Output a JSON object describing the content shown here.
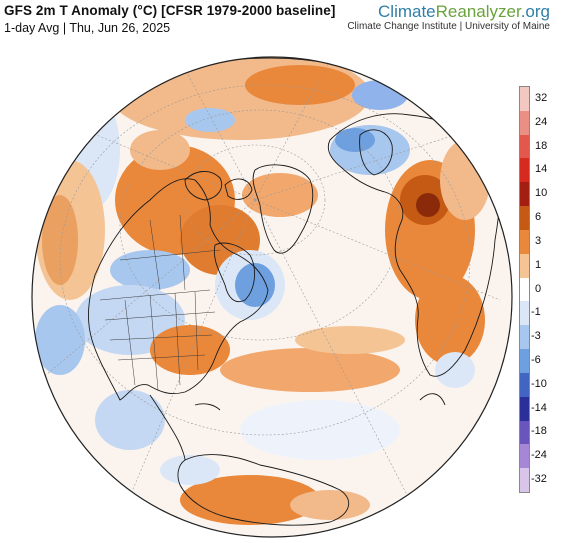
{
  "header": {
    "title": "GFS 2m T Anomaly (°C) [CFSR 1979-2000 baseline]",
    "subtitle": "1-day Avg | Thu, Jun 26, 2025"
  },
  "brand": {
    "name_part1": "Climate",
    "name_part2": "Reanalyzer",
    "name_part3": ".org",
    "affiliation": "Climate Change Institute | University of Maine"
  },
  "legend": {
    "ticks": [
      "32",
      "24",
      "18",
      "14",
      "10",
      "6",
      "3",
      "1",
      "0",
      "-1",
      "-3",
      "-6",
      "-10",
      "-14",
      "-18",
      "-24",
      "-32"
    ],
    "colors": [
      "#f2c8c1",
      "#ea8f84",
      "#e3584c",
      "#d62a1f",
      "#a41f12",
      "#c55a14",
      "#e9873a",
      "#f4c495",
      "#ffffff",
      "#dbe7f7",
      "#a8c7ee",
      "#6e9fdf",
      "#4265c4",
      "#2b2f9a",
      "#6a55bd",
      "#a687d6",
      "#d9c4ea"
    ]
  },
  "map": {
    "projection": "orthographic",
    "center": "north-atlantic / arctic"
  }
}
